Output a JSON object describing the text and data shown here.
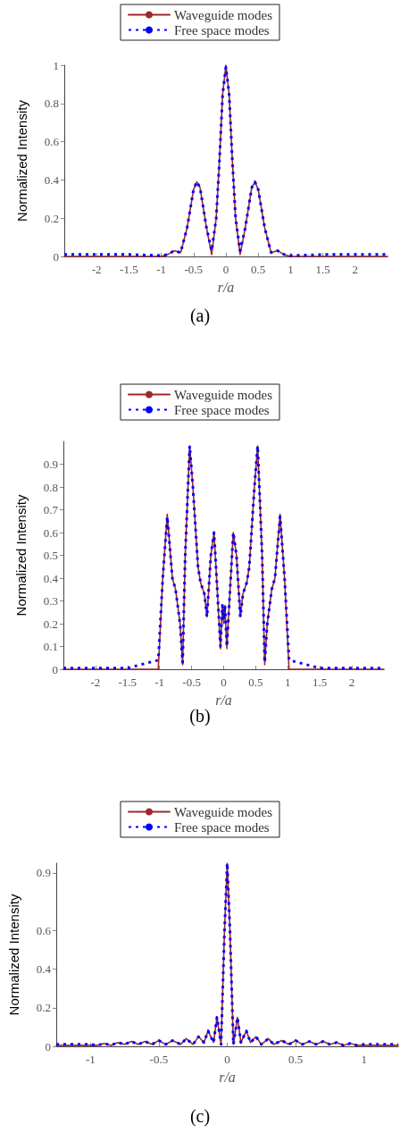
{
  "chart_data": [
    {
      "type": "line",
      "title": "(a)",
      "xlabel": "r/a",
      "ylabel": "Normalized Intensity",
      "legend": "top",
      "grid": false,
      "xlim": [
        -2.5,
        2.5
      ],
      "xticks": [
        -2,
        -1.5,
        -1,
        -0.5,
        0,
        0.5,
        1,
        1.5,
        2
      ],
      "ylim": [
        0,
        1
      ],
      "yticks": [
        0,
        0.2,
        0.4,
        0.6,
        0.8,
        1
      ],
      "x": [
        -2.5,
        -1.5,
        -1,
        -0.9,
        -0.8,
        -0.7,
        -0.6,
        -0.5,
        -0.45,
        -0.4,
        -0.3,
        -0.22,
        -0.15,
        -0.1,
        -0.05,
        0,
        0.05,
        0.1,
        0.15,
        0.22,
        0.3,
        0.4,
        0.45,
        0.5,
        0.6,
        0.7,
        0.8,
        0.9,
        1,
        1.5,
        2.5
      ],
      "series": [
        {
          "name": "Waveguide modes",
          "color": "#a0282d",
          "line_style": "solid",
          "values": [
            0,
            0,
            0,
            0.01,
            0.03,
            0.02,
            0.15,
            0.35,
            0.39,
            0.36,
            0.15,
            0.01,
            0.2,
            0.5,
            0.85,
            1,
            0.85,
            0.5,
            0.2,
            0.01,
            0.15,
            0.36,
            0.39,
            0.35,
            0.15,
            0.02,
            0.03,
            0.01,
            0,
            0,
            0
          ]
        },
        {
          "name": "Free space modes",
          "color": "#0000ff",
          "line_style": "dotted",
          "values": [
            0.01,
            0.01,
            0.005,
            0.01,
            0.03,
            0.02,
            0.15,
            0.35,
            0.39,
            0.36,
            0.15,
            0.03,
            0.2,
            0.5,
            0.85,
            0.99,
            0.85,
            0.5,
            0.2,
            0.03,
            0.15,
            0.36,
            0.39,
            0.35,
            0.15,
            0.02,
            0.03,
            0.01,
            0.005,
            0.01,
            0.01
          ]
        }
      ]
    },
    {
      "type": "line",
      "title": "(b)",
      "xlabel": "r/a",
      "ylabel": "Normalized Intensity",
      "legend": "top",
      "grid": false,
      "xlim": [
        -2.5,
        2.5
      ],
      "xticks": [
        -2,
        -1.5,
        -1,
        -0.5,
        0,
        0.5,
        1,
        1.5,
        2
      ],
      "ylim": [
        0,
        1
      ],
      "yticks": [
        0,
        0.1,
        0.2,
        0.3,
        0.4,
        0.5,
        0.6,
        0.7,
        0.8,
        0.9
      ],
      "x": [
        -2.5,
        -1.5,
        -1.02,
        -0.95,
        -0.88,
        -0.8,
        -0.75,
        -0.68,
        -0.64,
        -0.6,
        -0.53,
        -0.48,
        -0.4,
        -0.36,
        -0.3,
        -0.26,
        -0.2,
        -0.15,
        -0.12,
        -0.07,
        -0.05,
        -0.02,
        0,
        0.02,
        0.05,
        0.07,
        0.12,
        0.15,
        0.2,
        0.26,
        0.3,
        0.36,
        0.4,
        0.48,
        0.53,
        0.6,
        0.64,
        0.68,
        0.75,
        0.8,
        0.88,
        0.95,
        1.02,
        1.5,
        2.5
      ],
      "series": [
        {
          "name": "Waveguide modes",
          "color": "#a0282d",
          "line_style": "solid",
          "values": [
            0,
            0,
            0,
            0.4,
            0.68,
            0.4,
            0.35,
            0.2,
            0.02,
            0.5,
            0.98,
            0.8,
            0.45,
            0.38,
            0.33,
            0.23,
            0.5,
            0.6,
            0.45,
            0.2,
            0.09,
            0.28,
            0.2,
            0.28,
            0.09,
            0.2,
            0.45,
            0.6,
            0.5,
            0.23,
            0.33,
            0.38,
            0.45,
            0.8,
            0.98,
            0.5,
            0.02,
            0.2,
            0.35,
            0.4,
            0.68,
            0.4,
            0,
            0,
            0
          ]
        },
        {
          "name": "Free space modes",
          "color": "#0000ff",
          "line_style": "dotted",
          "values": [
            0.005,
            0.005,
            0.04,
            0.4,
            0.67,
            0.4,
            0.35,
            0.2,
            0.03,
            0.5,
            0.98,
            0.8,
            0.45,
            0.38,
            0.33,
            0.23,
            0.5,
            0.6,
            0.45,
            0.2,
            0.1,
            0.28,
            0.22,
            0.28,
            0.1,
            0.2,
            0.45,
            0.6,
            0.5,
            0.23,
            0.33,
            0.38,
            0.45,
            0.8,
            0.98,
            0.5,
            0.03,
            0.2,
            0.35,
            0.4,
            0.67,
            0.4,
            0.04,
            0.005,
            0.005
          ]
        }
      ]
    },
    {
      "type": "line",
      "title": "(c)",
      "xlabel": "r/a",
      "ylabel": "Normalized Intensity",
      "legend": "top",
      "grid": false,
      "xlim": [
        -1.25,
        1.25
      ],
      "xticks": [
        -1,
        -0.5,
        0,
        0.5,
        1
      ],
      "ylim": [
        0,
        0.95
      ],
      "yticks": [
        0,
        0.2,
        0.4,
        0.6,
        0.9
      ],
      "x": [
        -1.25,
        -1,
        -0.95,
        -0.9,
        -0.85,
        -0.8,
        -0.75,
        -0.7,
        -0.65,
        -0.6,
        -0.55,
        -0.5,
        -0.45,
        -0.4,
        -0.34,
        -0.3,
        -0.25,
        -0.21,
        -0.17,
        -0.14,
        -0.1,
        -0.075,
        -0.045,
        -0.02,
        0,
        0.02,
        0.045,
        0.075,
        0.1,
        0.14,
        0.17,
        0.21,
        0.25,
        0.3,
        0.34,
        0.4,
        0.45,
        0.5,
        0.55,
        0.6,
        0.65,
        0.7,
        0.75,
        0.8,
        0.85,
        0.9,
        0.95,
        1,
        1.25
      ],
      "series": [
        {
          "name": "Waveguide modes",
          "color": "#a0282d",
          "line_style": "solid",
          "values": [
            0.005,
            0.005,
            0.005,
            0.015,
            0.005,
            0.02,
            0.01,
            0.025,
            0.01,
            0.025,
            0.01,
            0.03,
            0.01,
            0.03,
            0.01,
            0.04,
            0.01,
            0.05,
            0.02,
            0.08,
            0.02,
            0.15,
            0.01,
            0.6,
            0.95,
            0.6,
            0.01,
            0.15,
            0.02,
            0.08,
            0.02,
            0.05,
            0.01,
            0.04,
            0.01,
            0.03,
            0.01,
            0.03,
            0.01,
            0.025,
            0.01,
            0.025,
            0.01,
            0.02,
            0.005,
            0.015,
            0.005,
            0.005,
            0.005
          ]
        },
        {
          "name": "Free space modes",
          "color": "#0000ff",
          "line_style": "dotted",
          "values": [
            0.01,
            0.01,
            0.005,
            0.015,
            0.005,
            0.02,
            0.01,
            0.025,
            0.01,
            0.025,
            0.01,
            0.03,
            0.01,
            0.03,
            0.01,
            0.04,
            0.01,
            0.05,
            0.02,
            0.08,
            0.02,
            0.15,
            0.01,
            0.6,
            0.95,
            0.6,
            0.01,
            0.15,
            0.02,
            0.08,
            0.02,
            0.05,
            0.01,
            0.04,
            0.01,
            0.03,
            0.01,
            0.03,
            0.01,
            0.025,
            0.01,
            0.025,
            0.01,
            0.02,
            0.005,
            0.015,
            0.005,
            0.01,
            0.01
          ]
        }
      ]
    }
  ]
}
